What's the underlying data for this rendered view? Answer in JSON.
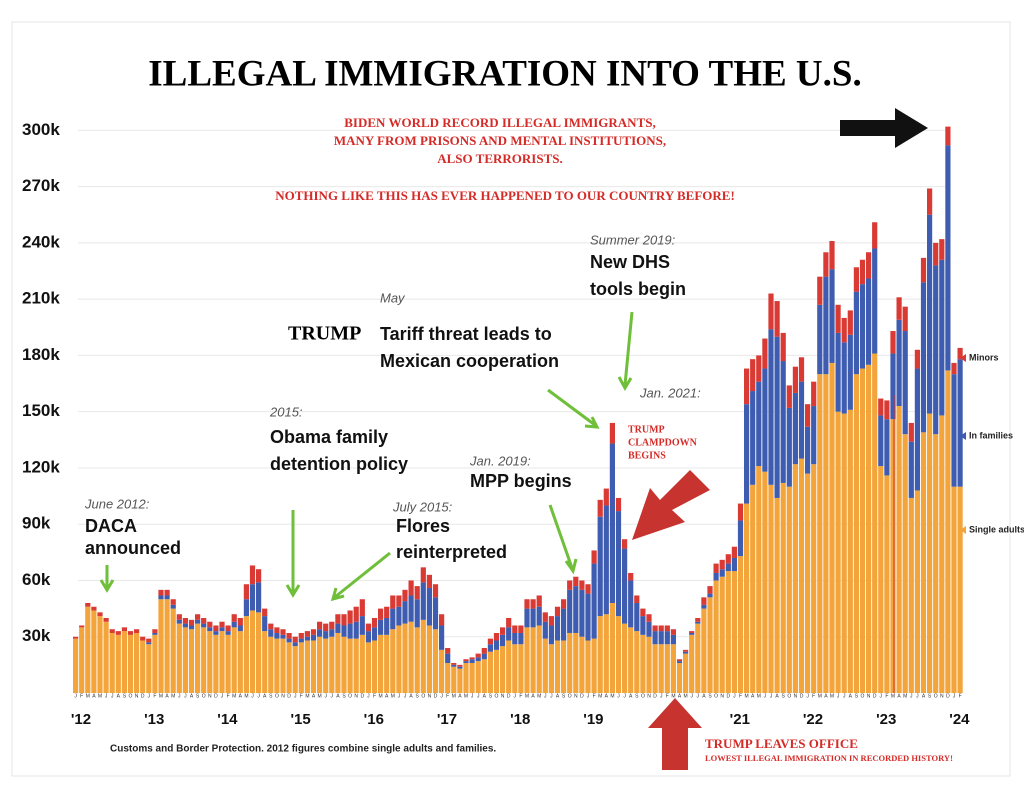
{
  "chart_data": {
    "type": "stacked_bar",
    "title": "ILLEGAL IMMIGRATION INTO THE U.S.",
    "source": "Customs and Border Protection. 2012 figures combine single adults and families.",
    "annotations": {
      "biden": [
        "BIDEN WORLD RECORD ILLEGAL IMMIGRANTS,",
        "MANY FROM PRISONS AND MENTAL INSTITUTIONS,",
        "ALSO TERRORISTS."
      ],
      "never": "NOTHING LIKE THIS HAS EVER HAPPENED TO OUR COUNTRY BEFORE!",
      "daca": [
        "June 2012:",
        "DACA",
        "announced"
      ],
      "obama": [
        "2015:",
        "Obama family",
        "detention policy"
      ],
      "flores": [
        "July 2015:",
        "Flores",
        "reinterpreted"
      ],
      "tariff": [
        "May",
        "TRUMP",
        "Tariff threat leads to",
        "Mexican cooperation"
      ],
      "mpp": [
        "Jan. 2019:",
        "MPP begins"
      ],
      "dhs": [
        "Summer 2019:",
        "New DHS",
        "tools begin"
      ],
      "jan2021": "Jan. 2021:",
      "clampdown": [
        "TRUMP",
        "CLAMPDOWN",
        "BEGINS"
      ],
      "leaves": [
        "TRUMP LEAVES OFFICE",
        "LOWEST ILLEGAL IMMIGRATION IN RECORDED HISTORY!"
      ]
    },
    "categories": [
      "J",
      "F",
      "M",
      "A",
      "M",
      "J",
      "J",
      "A",
      "S",
      "O",
      "N",
      "D",
      "J",
      "F",
      "M",
      "A",
      "M",
      "J",
      "J",
      "A",
      "S",
      "O",
      "N",
      "D",
      "J",
      "F",
      "M",
      "A",
      "M",
      "J",
      "J",
      "A",
      "S",
      "O",
      "N",
      "D",
      "J",
      "F",
      "M",
      "A",
      "M",
      "J",
      "J",
      "A",
      "S",
      "O",
      "N",
      "D",
      "J",
      "F",
      "M",
      "A",
      "M",
      "J",
      "J",
      "A",
      "S",
      "O",
      "N",
      "D",
      "J",
      "F",
      "M",
      "A",
      "M",
      "J",
      "J",
      "A",
      "S",
      "O",
      "N",
      "D",
      "J",
      "F",
      "M",
      "A",
      "M",
      "J",
      "J",
      "A",
      "S",
      "O",
      "N",
      "D",
      "J",
      "F",
      "M",
      "A",
      "M",
      "J",
      "J",
      "A",
      "S",
      "O",
      "N",
      "D",
      "J",
      "F",
      "M",
      "A",
      "M",
      "J",
      "J",
      "A",
      "S",
      "O",
      "N",
      "D",
      "J",
      "F",
      "M",
      "A",
      "M",
      "J",
      "J",
      "A",
      "S",
      "O",
      "N",
      "D",
      "J",
      "F",
      "M",
      "A",
      "M",
      "J",
      "J",
      "A",
      "S",
      "O",
      "N",
      "D",
      "J",
      "F",
      "M",
      "A",
      "M",
      "J",
      "J",
      "A",
      "S",
      "O",
      "N",
      "D",
      "J",
      "F"
    ],
    "year_labels": [
      "'12",
      "'13",
      "'14",
      "'15",
      "'16",
      "'17",
      "'18",
      "'19",
      null,
      "'21",
      "'22",
      "'23",
      "'24"
    ],
    "series": [
      {
        "name": "Single adults",
        "color": "#f3a53b",
        "values": [
          29000,
          35000,
          46000,
          44000,
          41000,
          38000,
          32000,
          31000,
          33000,
          31000,
          32000,
          28000,
          26000,
          31000,
          50000,
          50000,
          45000,
          37000,
          35000,
          34000,
          37000,
          35000,
          33000,
          31000,
          33000,
          31000,
          35000,
          33000,
          41000,
          44000,
          43000,
          33000,
          30000,
          29000,
          29000,
          27000,
          25000,
          27000,
          28000,
          28000,
          30000,
          29000,
          30000,
          32000,
          30000,
          29000,
          29000,
          31000,
          27000,
          28000,
          31000,
          31000,
          34000,
          36000,
          37000,
          38000,
          35000,
          39000,
          36000,
          34000,
          23000,
          16000,
          14000,
          13000,
          16000,
          16000,
          17000,
          18000,
          22000,
          23000,
          25000,
          28000,
          26000,
          26000,
          35000,
          35000,
          36000,
          29000,
          26000,
          28000,
          28000,
          32000,
          32000,
          30000,
          28000,
          29000,
          41000,
          42000,
          48000,
          41000,
          37000,
          35000,
          33000,
          31000,
          30000,
          26000,
          26000,
          26000,
          26000,
          16000,
          21000,
          31000,
          37000,
          45000,
          51000,
          60000,
          62000,
          65000,
          65000,
          73000,
          101000,
          111000,
          121000,
          118000,
          111000,
          104000,
          112000,
          110000,
          122000,
          125000,
          117000,
          122000,
          170000,
          170000,
          176000,
          150000,
          149000,
          151000,
          170000,
          173000,
          175000,
          181000,
          121000,
          116000,
          146000,
          153000,
          138000,
          104000,
          108000,
          139000,
          149000,
          138000,
          148000,
          172000,
          110000,
          110000
        ]
      },
      {
        "name": "In families",
        "color": "#3f5db0",
        "values": [
          0,
          0,
          0,
          0,
          0,
          0,
          0,
          0,
          0,
          0,
          0,
          0,
          1000,
          1000,
          2000,
          2000,
          2000,
          2000,
          2000,
          2000,
          2000,
          2000,
          2000,
          2000,
          2000,
          2000,
          3000,
          3000,
          9000,
          14000,
          16000,
          8000,
          4000,
          3000,
          2000,
          2000,
          2000,
          2000,
          2000,
          3000,
          4000,
          4000,
          4000,
          5000,
          6000,
          8000,
          9000,
          10000,
          6000,
          7000,
          8000,
          9000,
          11000,
          10000,
          12000,
          14000,
          15000,
          20000,
          20000,
          17000,
          13000,
          5000,
          1000,
          1000,
          1000,
          2000,
          2000,
          3000,
          4000,
          5000,
          6000,
          7000,
          6000,
          6000,
          10000,
          10000,
          10000,
          9000,
          10000,
          13000,
          17000,
          23000,
          25000,
          25000,
          25000,
          40000,
          53000,
          58000,
          85000,
          56000,
          40000,
          25000,
          15000,
          10000,
          8000,
          7000,
          7000,
          7000,
          5000,
          1000,
          1000,
          1000,
          1000,
          2000,
          2000,
          4000,
          4000,
          4000,
          7000,
          19000,
          53000,
          50000,
          45000,
          55000,
          83000,
          86000,
          65000,
          42000,
          38000,
          41000,
          25000,
          31000,
          37000,
          52000,
          50000,
          42000,
          38000,
          40000,
          44000,
          45000,
          46000,
          56000,
          27000,
          30000,
          35000,
          46000,
          55000,
          30000,
          65000,
          80000,
          106000,
          90000,
          83000,
          120000,
          60000,
          68000
        ]
      },
      {
        "name": "Minors",
        "color": "#d93a34",
        "values": [
          1000,
          1000,
          2000,
          2000,
          2000,
          2000,
          2000,
          2000,
          2000,
          2000,
          2000,
          2000,
          2000,
          2000,
          3000,
          3000,
          3000,
          3000,
          3000,
          3000,
          3000,
          3000,
          3000,
          3000,
          3000,
          3000,
          4000,
          4000,
          8000,
          10000,
          7000,
          4000,
          3000,
          3000,
          3000,
          3000,
          3000,
          3000,
          3000,
          3000,
          4000,
          4000,
          4000,
          5000,
          6000,
          7000,
          8000,
          9000,
          4000,
          5000,
          6000,
          6000,
          7000,
          6000,
          6000,
          8000,
          7000,
          8000,
          7000,
          7000,
          6000,
          3000,
          1000,
          1000,
          1000,
          1000,
          2000,
          3000,
          3000,
          4000,
          4000,
          5000,
          4000,
          4000,
          5000,
          5000,
          6000,
          5000,
          5000,
          5000,
          5000,
          5000,
          5000,
          5000,
          5000,
          7000,
          9000,
          9000,
          11000,
          7000,
          5000,
          4000,
          4000,
          4000,
          4000,
          3000,
          3000,
          3000,
          3000,
          1000,
          1000,
          1000,
          2000,
          4000,
          4000,
          5000,
          5000,
          5000,
          6000,
          9000,
          19000,
          17000,
          14000,
          16000,
          19000,
          19000,
          15000,
          12000,
          14000,
          13000,
          12000,
          13000,
          15000,
          13000,
          15000,
          15000,
          13000,
          13000,
          13000,
          13000,
          14000,
          14000,
          9000,
          10000,
          12000,
          12000,
          13000,
          10000,
          10000,
          13000,
          14000,
          12000,
          11000,
          10000,
          6000,
          6000
        ]
      }
    ],
    "ylim": [
      0,
      310000
    ],
    "yticks": [
      {
        "value": 30000,
        "label": "30k"
      },
      {
        "value": 60000,
        "label": "60k"
      },
      {
        "value": 90000,
        "label": "90k"
      },
      {
        "value": 120000,
        "label": "120k"
      },
      {
        "value": 150000,
        "label": "150k"
      },
      {
        "value": 180000,
        "label": "180k"
      },
      {
        "value": 210000,
        "label": "210k"
      },
      {
        "value": 240000,
        "label": "240k"
      },
      {
        "value": 270000,
        "label": "270k"
      },
      {
        "value": 300000,
        "label": "300k"
      }
    ],
    "grid": true
  }
}
